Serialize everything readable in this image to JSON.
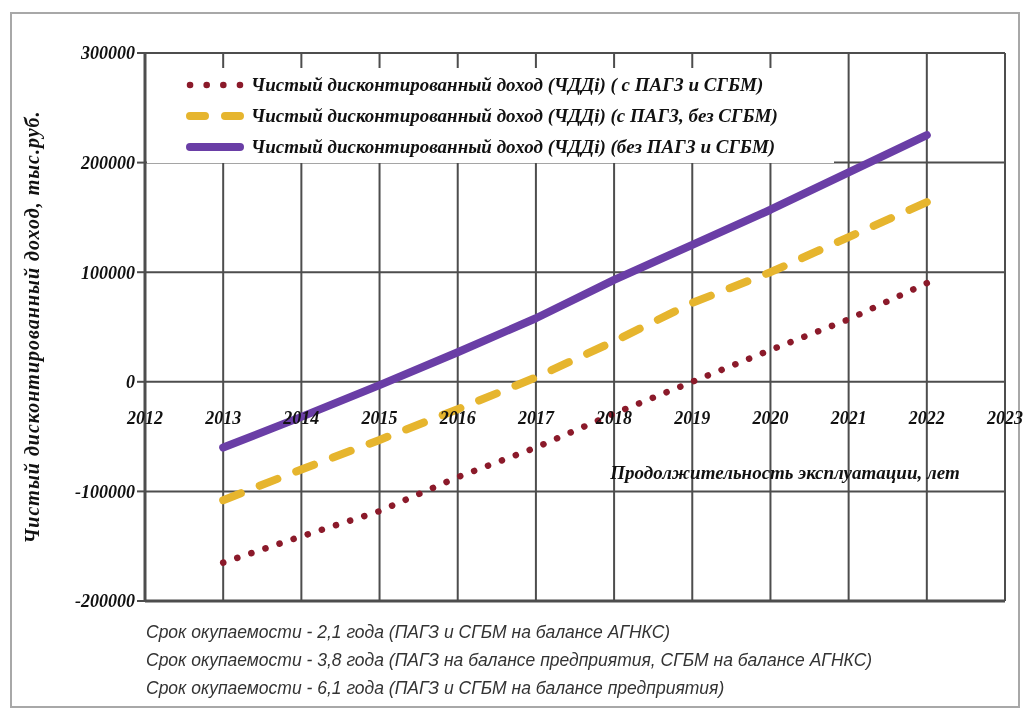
{
  "chart_data": {
    "type": "line",
    "ylabel": "Чистый дисконтированный доход, тыс.руб.",
    "xlabel": "Продолжительность эксплуатации, лет",
    "x": [
      2013,
      2014,
      2015,
      2016,
      2017,
      2018,
      2019,
      2020,
      2021,
      2022
    ],
    "series": [
      {
        "name": "Чистый дисконтированный доход (ЧДДi) ( с ПАГЗ и СГБМ)",
        "color": "#8b1a2a",
        "line_style": "dotted",
        "values": [
          -165000,
          -141000,
          -118000,
          -87000,
          -60000,
          -29000,
          0,
          29000,
          57000,
          90000
        ]
      },
      {
        "name": "Чистый дисконтированный доход (ЧДДi) (с ПАГЗ, без СГБМ)",
        "color": "#e6b52e",
        "line_style": "dashed",
        "values": [
          -108000,
          -80000,
          -53000,
          -25000,
          4000,
          37000,
          72000,
          100000,
          132000,
          164000
        ]
      },
      {
        "name": "Чистый дисконтированный доход (ЧДДi) (без ПАГЗ и СГБМ)",
        "color": "#6a3ea6",
        "line_style": "solid",
        "values": [
          -60000,
          -32000,
          -3000,
          27000,
          58000,
          93000,
          125000,
          157000,
          191000,
          225000
        ]
      }
    ],
    "xlim": [
      2012,
      2023
    ],
    "xticks": [
      2012,
      2013,
      2014,
      2015,
      2016,
      2017,
      2018,
      2019,
      2020,
      2021,
      2022,
      2023
    ],
    "ylim": [
      -200000,
      300000
    ],
    "yticks": [
      -200000,
      -100000,
      0,
      100000,
      200000,
      300000
    ],
    "grid": true,
    "legend": "top left",
    "annotations": [
      "Срок окупаемости - 2,1 года (ПАГЗ и СГБМ на балансе АГНКС)",
      "Срок окупаемости - 3,8 года (ПАГЗ на балансе предприятия, СГБМ на балансе АГНКС)",
      "Срок окупаемости - 6,1 года (ПАГЗ и СГБМ на балансе предприятия)"
    ]
  }
}
